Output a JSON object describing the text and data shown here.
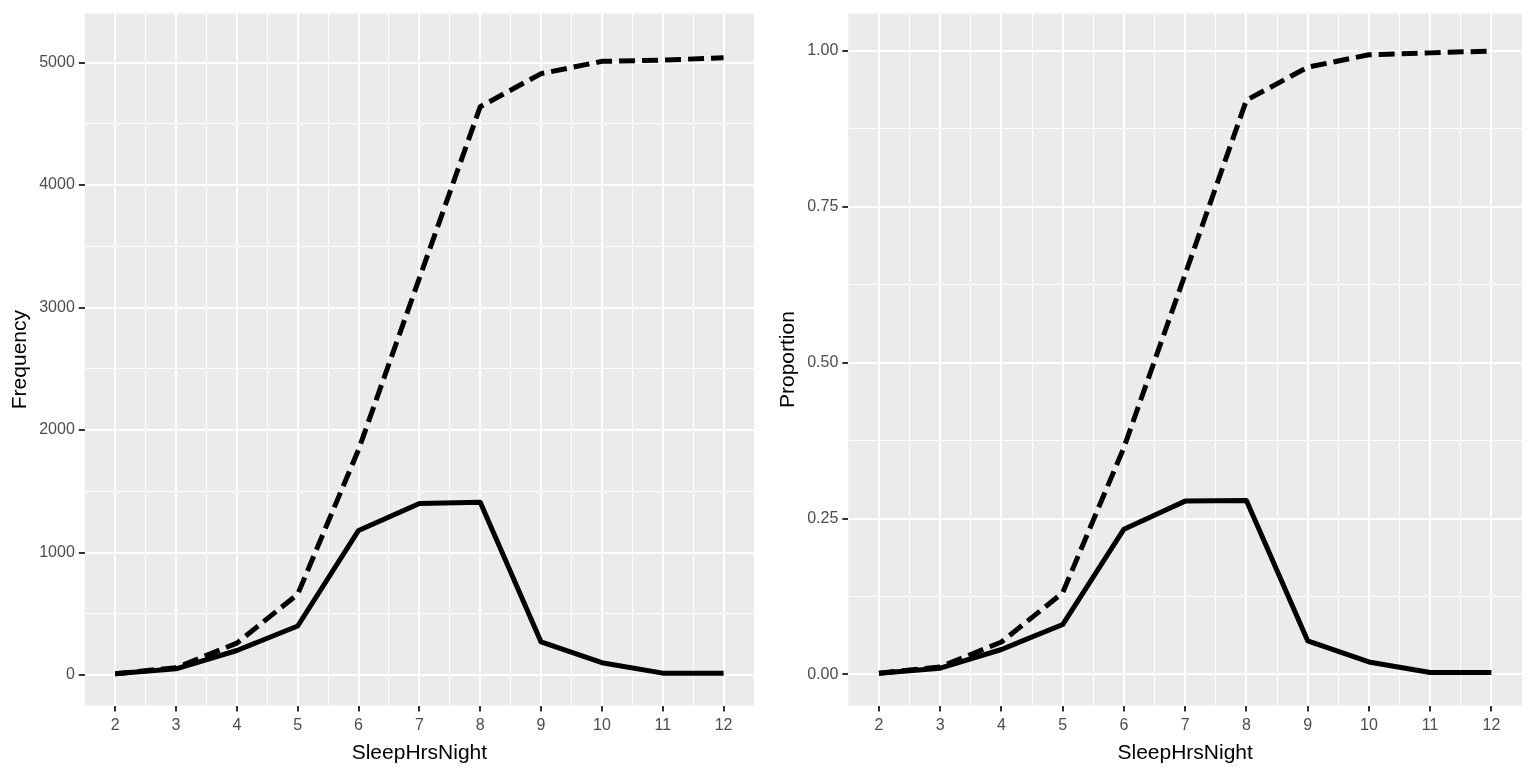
{
  "chart_data": [
    {
      "type": "line",
      "xlabel": "SleepHrsNight",
      "ylabel": "Frequency",
      "x": [
        2,
        3,
        4,
        5,
        6,
        7,
        8,
        9,
        10,
        11,
        12
      ],
      "series": [
        {
          "color": "#000000",
          "line_style": "solid",
          "values": [
            10,
            50,
            200,
            400,
            1180,
            1400,
            1410,
            270,
            100,
            15,
            15
          ]
        },
        {
          "color": "#000000",
          "line_style": "dashed",
          "values": [
            10,
            60,
            260,
            660,
            1840,
            3240,
            4640,
            4910,
            5010,
            5020,
            5040
          ]
        }
      ],
      "xlim": [
        1.5,
        12.5
      ],
      "xticks": [
        2,
        {
          "value": 2.5,
          "label": null
        },
        3,
        {
          "value": 3.5,
          "label": null
        },
        4,
        {
          "value": 4.5,
          "label": null
        },
        5,
        {
          "value": 5.5,
          "label": null
        },
        6,
        {
          "value": 6.5,
          "label": null
        },
        7,
        {
          "value": 7.5,
          "label": null
        },
        8,
        {
          "value": 8.5,
          "label": null
        },
        9,
        {
          "value": 9.5,
          "label": null
        },
        10,
        {
          "value": 10.5,
          "label": null
        },
        11,
        {
          "value": 11.5,
          "label": null
        },
        12
      ],
      "ylim": [
        -250,
        5400
      ],
      "yticks": [
        0,
        {
          "value": 500,
          "label": null
        },
        1000,
        {
          "value": 1500,
          "label": null
        },
        2000,
        {
          "value": 2500,
          "label": null
        },
        3000,
        {
          "value": 3500,
          "label": null
        },
        4000,
        {
          "value": 4500,
          "label": null
        },
        5000
      ],
      "grid": true,
      "legend": false,
      "marker": "none"
    },
    {
      "type": "line",
      "xlabel": "SleepHrsNight",
      "ylabel": "Proportion",
      "x": [
        2,
        3,
        4,
        5,
        6,
        7,
        8,
        9,
        10,
        11,
        12
      ],
      "series": [
        {
          "color": "#000000",
          "line_style": "solid",
          "values": [
            0.002,
            0.01,
            0.04,
            0.08,
            0.233,
            0.278,
            0.279,
            0.054,
            0.02,
            0.003,
            0.003
          ]
        },
        {
          "color": "#000000",
          "line_style": "dashed",
          "values": [
            0.002,
            0.012,
            0.052,
            0.131,
            0.364,
            0.642,
            0.921,
            0.974,
            0.994,
            0.997,
            1.0
          ]
        }
      ],
      "xlim": [
        1.5,
        12.5
      ],
      "xticks": [
        2,
        {
          "value": 2.5,
          "label": null
        },
        3,
        {
          "value": 3.5,
          "label": null
        },
        4,
        {
          "value": 4.5,
          "label": null
        },
        5,
        {
          "value": 5.5,
          "label": null
        },
        6,
        {
          "value": 6.5,
          "label": null
        },
        7,
        {
          "value": 7.5,
          "label": null
        },
        8,
        {
          "value": 8.5,
          "label": null
        },
        9,
        {
          "value": 9.5,
          "label": null
        },
        10,
        {
          "value": 10.5,
          "label": null
        },
        11,
        {
          "value": 11.5,
          "label": null
        },
        12
      ],
      "ylim": [
        -0.05,
        1.06
      ],
      "yticks": [
        {
          "value": 0,
          "label": "0.00"
        },
        {
          "value": 0.125,
          "label": null
        },
        {
          "value": 0.25,
          "label": "0.25"
        },
        {
          "value": 0.375,
          "label": null
        },
        {
          "value": 0.5,
          "label": "0.50"
        },
        {
          "value": 0.625,
          "label": null
        },
        {
          "value": 0.75,
          "label": "0.75"
        },
        {
          "value": 0.875,
          "label": null
        },
        {
          "value": 1,
          "label": "1.00"
        }
      ],
      "grid": true,
      "legend": false,
      "marker": "none"
    }
  ]
}
